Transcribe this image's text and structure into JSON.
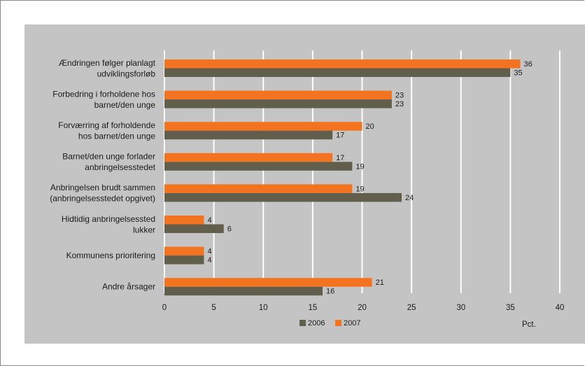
{
  "chart_data": {
    "type": "bar",
    "orientation": "horizontal",
    "categories": [
      [
        "Ændringen følger planlagt",
        "udviklingsforløb"
      ],
      [
        "Forbedring i forholdene hos",
        "barnet/den unge"
      ],
      [
        "Forværring af forholdende",
        "hos barnet/den unge"
      ],
      [
        "Barnet/den unge forlader",
        "anbringelsesstedet"
      ],
      [
        "Anbringelsen brudt sammen",
        "(anbringelsesstedet opgivet)"
      ],
      [
        "Hidtidig anbringelsessted",
        "lukker"
      ],
      [
        "Kommunens prioritering"
      ],
      [
        "Andre årsager"
      ]
    ],
    "series": [
      {
        "name": "2007",
        "color": "#f47320",
        "values": [
          36,
          23,
          20,
          17,
          19,
          4,
          4,
          21
        ]
      },
      {
        "name": "2006",
        "color": "#615f4c",
        "values": [
          35,
          23,
          17,
          19,
          24,
          6,
          4,
          16
        ]
      }
    ],
    "xlim": [
      0,
      40
    ],
    "xticks": [
      "0",
      "5",
      "10",
      "15",
      "20",
      "25",
      "30",
      "35",
      "40"
    ],
    "xlabel": "Pct.",
    "legend": [
      {
        "name": "2006",
        "color": "#615f4c"
      },
      {
        "name": "2007",
        "color": "#f47320"
      }
    ],
    "legend_position": "bottom-center",
    "grid": "vertical"
  }
}
